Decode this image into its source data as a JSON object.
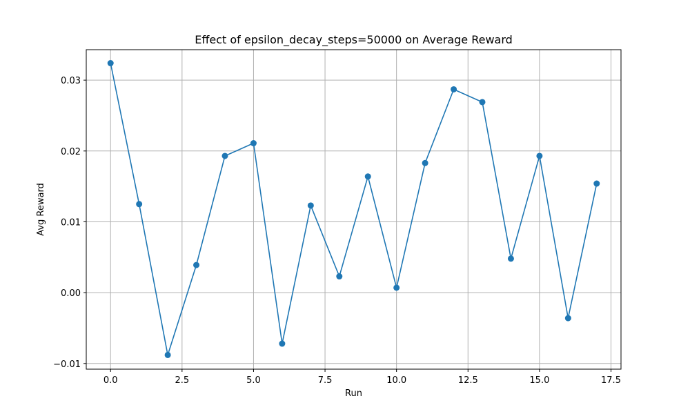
{
  "chart_data": {
    "type": "line",
    "title": "Effect of epsilon_decay_steps=50000 on Average Reward",
    "xlabel": "Run",
    "ylabel": "Avg Reward",
    "xlim": [
      -0.85,
      17.85
    ],
    "ylim": [
      -0.0108,
      0.0343
    ],
    "grid": true,
    "x_ticks": [
      0.0,
      2.5,
      5.0,
      7.5,
      10.0,
      12.5,
      15.0,
      17.5
    ],
    "x_tick_labels": [
      "0.0",
      "2.5",
      "5.0",
      "7.5",
      "10.0",
      "12.5",
      "15.0",
      "17.5"
    ],
    "y_ticks": [
      -0.01,
      0.0,
      0.01,
      0.02,
      0.03
    ],
    "y_tick_labels": [
      "−0.01",
      "0.00",
      "0.01",
      "0.02",
      "0.03"
    ],
    "series": [
      {
        "color": "#1f77b4",
        "marker": "circle",
        "x": [
          0,
          1,
          2,
          3,
          4,
          5,
          6,
          7,
          8,
          9,
          10,
          11,
          12,
          13,
          14,
          15,
          16,
          17
        ],
        "values": [
          0.0324,
          0.0125,
          -0.0088,
          0.0039,
          0.0193,
          0.0211,
          -0.0072,
          0.0123,
          0.0023,
          0.0164,
          0.0007,
          0.0183,
          0.0287,
          0.0269,
          0.0048,
          0.0193,
          -0.0036,
          0.0154
        ]
      }
    ]
  }
}
